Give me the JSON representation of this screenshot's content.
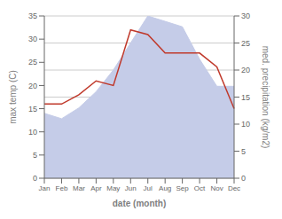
{
  "chart_data": {
    "type": "line",
    "categories": [
      "Jan",
      "Feb",
      "Mar",
      "Apr",
      "May",
      "Jun",
      "Jul",
      "Aug",
      "Sep",
      "Oct",
      "Nov",
      "Dec"
    ],
    "series": [
      {
        "type": "area",
        "color": "#c5cce8",
        "axis": "y2",
        "values": [
          12,
          11,
          13,
          16,
          20,
          25,
          30,
          29,
          28,
          22,
          17,
          17
        ]
      },
      {
        "type": "line",
        "color": "#c0392b",
        "values": [
          16,
          16,
          18,
          21,
          20,
          32,
          31,
          27,
          27,
          27,
          24,
          15
        ]
      }
    ],
    "xlabel": "date (month)",
    "ylabel": "max temp (C)",
    "y2label": "med. precipitation (kg/m2)",
    "ylim": [
      0,
      35
    ],
    "yticks": [
      0,
      5,
      10,
      15,
      20,
      25,
      30,
      35
    ],
    "y2lim": [
      0,
      30
    ],
    "y2ticks": [
      0,
      5,
      10,
      15,
      20,
      25,
      30
    ],
    "grid": true
  }
}
